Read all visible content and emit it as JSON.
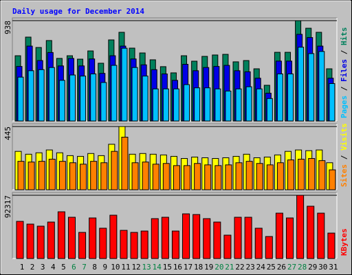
{
  "chart_data": [
    {
      "type": "bar",
      "title": "Daily usage for December 2014",
      "categories": [
        "1",
        "2",
        "3",
        "4",
        "5",
        "6",
        "7",
        "8",
        "9",
        "10",
        "11",
        "12",
        "13",
        "14",
        "15",
        "16",
        "17",
        "18",
        "19",
        "20",
        "21",
        "22",
        "23",
        "24",
        "25",
        "26",
        "27",
        "28",
        "29",
        "30",
        "31"
      ],
      "category_colors": [
        "#000000",
        "#000000",
        "#000000",
        "#000000",
        "#000000",
        "#008040",
        "#008040",
        "#000000",
        "#000000",
        "#000000",
        "#000000",
        "#000000",
        "#008040",
        "#008040",
        "#000000",
        "#000000",
        "#000000",
        "#000000",
        "#000000",
        "#008040",
        "#008040",
        "#000000",
        "#000000",
        "#000000",
        "#000000",
        "#000000",
        "#008040",
        "#008040",
        "#000000",
        "#000000",
        "#000000"
      ],
      "legend_separator": " / ",
      "ylim": [
        0,
        938
      ],
      "yticks": [
        938
      ],
      "series": [
        {
          "name": "Hits",
          "color": "#00805c",
          "values": [
            610,
            784,
            687,
            752,
            585,
            610,
            578,
            655,
            540,
            758,
            829,
            681,
            636,
            572,
            508,
            450,
            610,
            559,
            604,
            617,
            623,
            553,
            565,
            488,
            334,
            642,
            642,
            938,
            867,
            829,
            488
          ]
        },
        {
          "name": "Files",
          "color": "#0000e6",
          "values": [
            510,
            700,
            565,
            640,
            515,
            585,
            515,
            580,
            445,
            610,
            700,
            580,
            525,
            480,
            440,
            380,
            530,
            470,
            500,
            510,
            520,
            470,
            460,
            400,
            260,
            560,
            560,
            810,
            780,
            700,
            400
          ]
        },
        {
          "name": "Pages",
          "color": "#00c0ff",
          "values": [
            410,
            470,
            480,
            500,
            380,
            430,
            420,
            440,
            360,
            520,
            680,
            500,
            420,
            300,
            300,
            300,
            340,
            310,
            310,
            300,
            280,
            300,
            320,
            300,
            210,
            440,
            440,
            690,
            630,
            650,
            350
          ]
        }
      ]
    },
    {
      "type": "bar",
      "legend_separator": " / ",
      "ylim": [
        0,
        445
      ],
      "yticks": [
        445
      ],
      "series": [
        {
          "name": "Visits",
          "color": "#ffff00",
          "values": [
            270,
            250,
            260,
            280,
            260,
            240,
            235,
            255,
            240,
            320,
            445,
            250,
            255,
            250,
            245,
            235,
            220,
            230,
            225,
            220,
            225,
            235,
            250,
            225,
            230,
            245,
            270,
            280,
            275,
            280,
            190
          ]
        },
        {
          "name": "Sites",
          "color": "#ff8000",
          "values": [
            200,
            195,
            200,
            215,
            200,
            190,
            180,
            200,
            190,
            270,
            370,
            190,
            195,
            180,
            185,
            170,
            170,
            185,
            175,
            170,
            175,
            190,
            200,
            185,
            175,
            190,
            210,
            215,
            220,
            205,
            140
          ]
        }
      ]
    },
    {
      "type": "bar",
      "ylim": [
        0,
        92317
      ],
      "yticks": [
        92317
      ],
      "series": [
        {
          "name": "KBytes",
          "color": "#ff0000",
          "values": [
            54200,
            50200,
            47200,
            53200,
            68200,
            60200,
            38100,
            59200,
            44200,
            63200,
            41100,
            38100,
            40100,
            58200,
            60200,
            40100,
            65200,
            64200,
            58200,
            53200,
            34100,
            60200,
            60200,
            44200,
            32100,
            66200,
            59200,
            92317,
            76300,
            66200,
            37100
          ]
        }
      ]
    }
  ]
}
